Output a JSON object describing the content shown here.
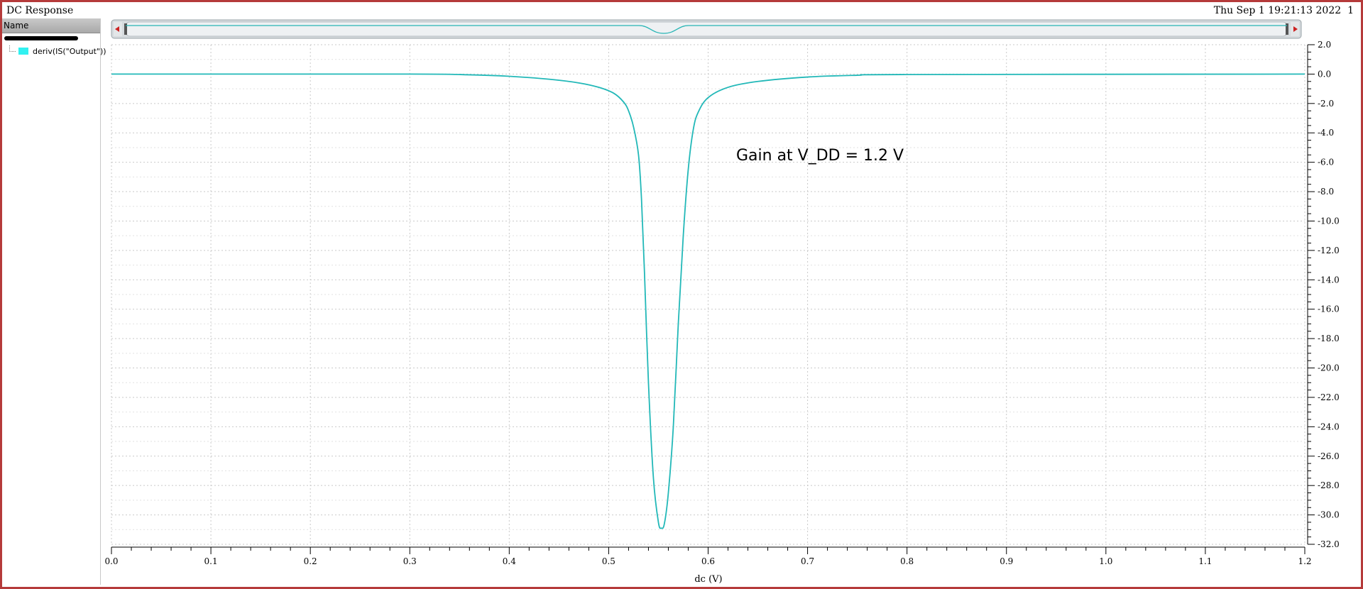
{
  "window": {
    "title": "DC Response",
    "timestamp": "Thu Sep 1 19:21:13 2022",
    "page_number": "1"
  },
  "sidebar": {
    "header": "Name",
    "items": [
      {
        "label": "deriv(IS(\"Output\"))",
        "color": "#31f1f1"
      }
    ]
  },
  "chart_data": {
    "type": "line",
    "title": "",
    "annotation": "Gain at V_DD = 1.2 V",
    "xlabel": "dc (V)",
    "ylabel": "",
    "xlim": [
      0.0,
      1.2
    ],
    "ylim": [
      -32.0,
      2.0
    ],
    "xticks": [
      "0.0",
      "0.1",
      "0.2",
      "0.3",
      "0.4",
      "0.5",
      "0.6",
      "0.7",
      "0.8",
      "0.9",
      "1.0",
      "1.1",
      "1.2"
    ],
    "yticks": [
      "2.0",
      "0.0",
      "-2.0",
      "-4.0",
      "-6.0",
      "-8.0",
      "-10.0",
      "-12.0",
      "-14.0",
      "-16.0",
      "-18.0",
      "-20.0",
      "-22.0",
      "-24.0",
      "-26.0",
      "-28.0",
      "-30.0",
      "-32.0"
    ],
    "grid": true,
    "series": [
      {
        "name": "deriv(IS(\"Output\"))",
        "color": "#22b8b8",
        "x": [
          0.0,
          0.3,
          0.36,
          0.4,
          0.44,
          0.47,
          0.49,
          0.505,
          0.515,
          0.52,
          0.525,
          0.53,
          0.533,
          0.536,
          0.54,
          0.545,
          0.55,
          0.553,
          0.556,
          0.56,
          0.565,
          0.57,
          0.575,
          0.58,
          0.585,
          0.59,
          0.6,
          0.62,
          0.65,
          0.7,
          0.75,
          0.8,
          1.2
        ],
        "y": [
          0.0,
          0.0,
          -0.05,
          -0.15,
          -0.35,
          -0.6,
          -0.9,
          -1.3,
          -1.9,
          -2.5,
          -3.6,
          -5.5,
          -8.5,
          -13.5,
          -21.0,
          -27.5,
          -30.5,
          -30.9,
          -30.6,
          -28.5,
          -24.0,
          -17.0,
          -11.0,
          -6.5,
          -3.8,
          -2.6,
          -1.6,
          -0.9,
          -0.5,
          -0.2,
          -0.08,
          -0.03,
          0.0
        ]
      }
    ],
    "overview_scrollbar": true
  }
}
